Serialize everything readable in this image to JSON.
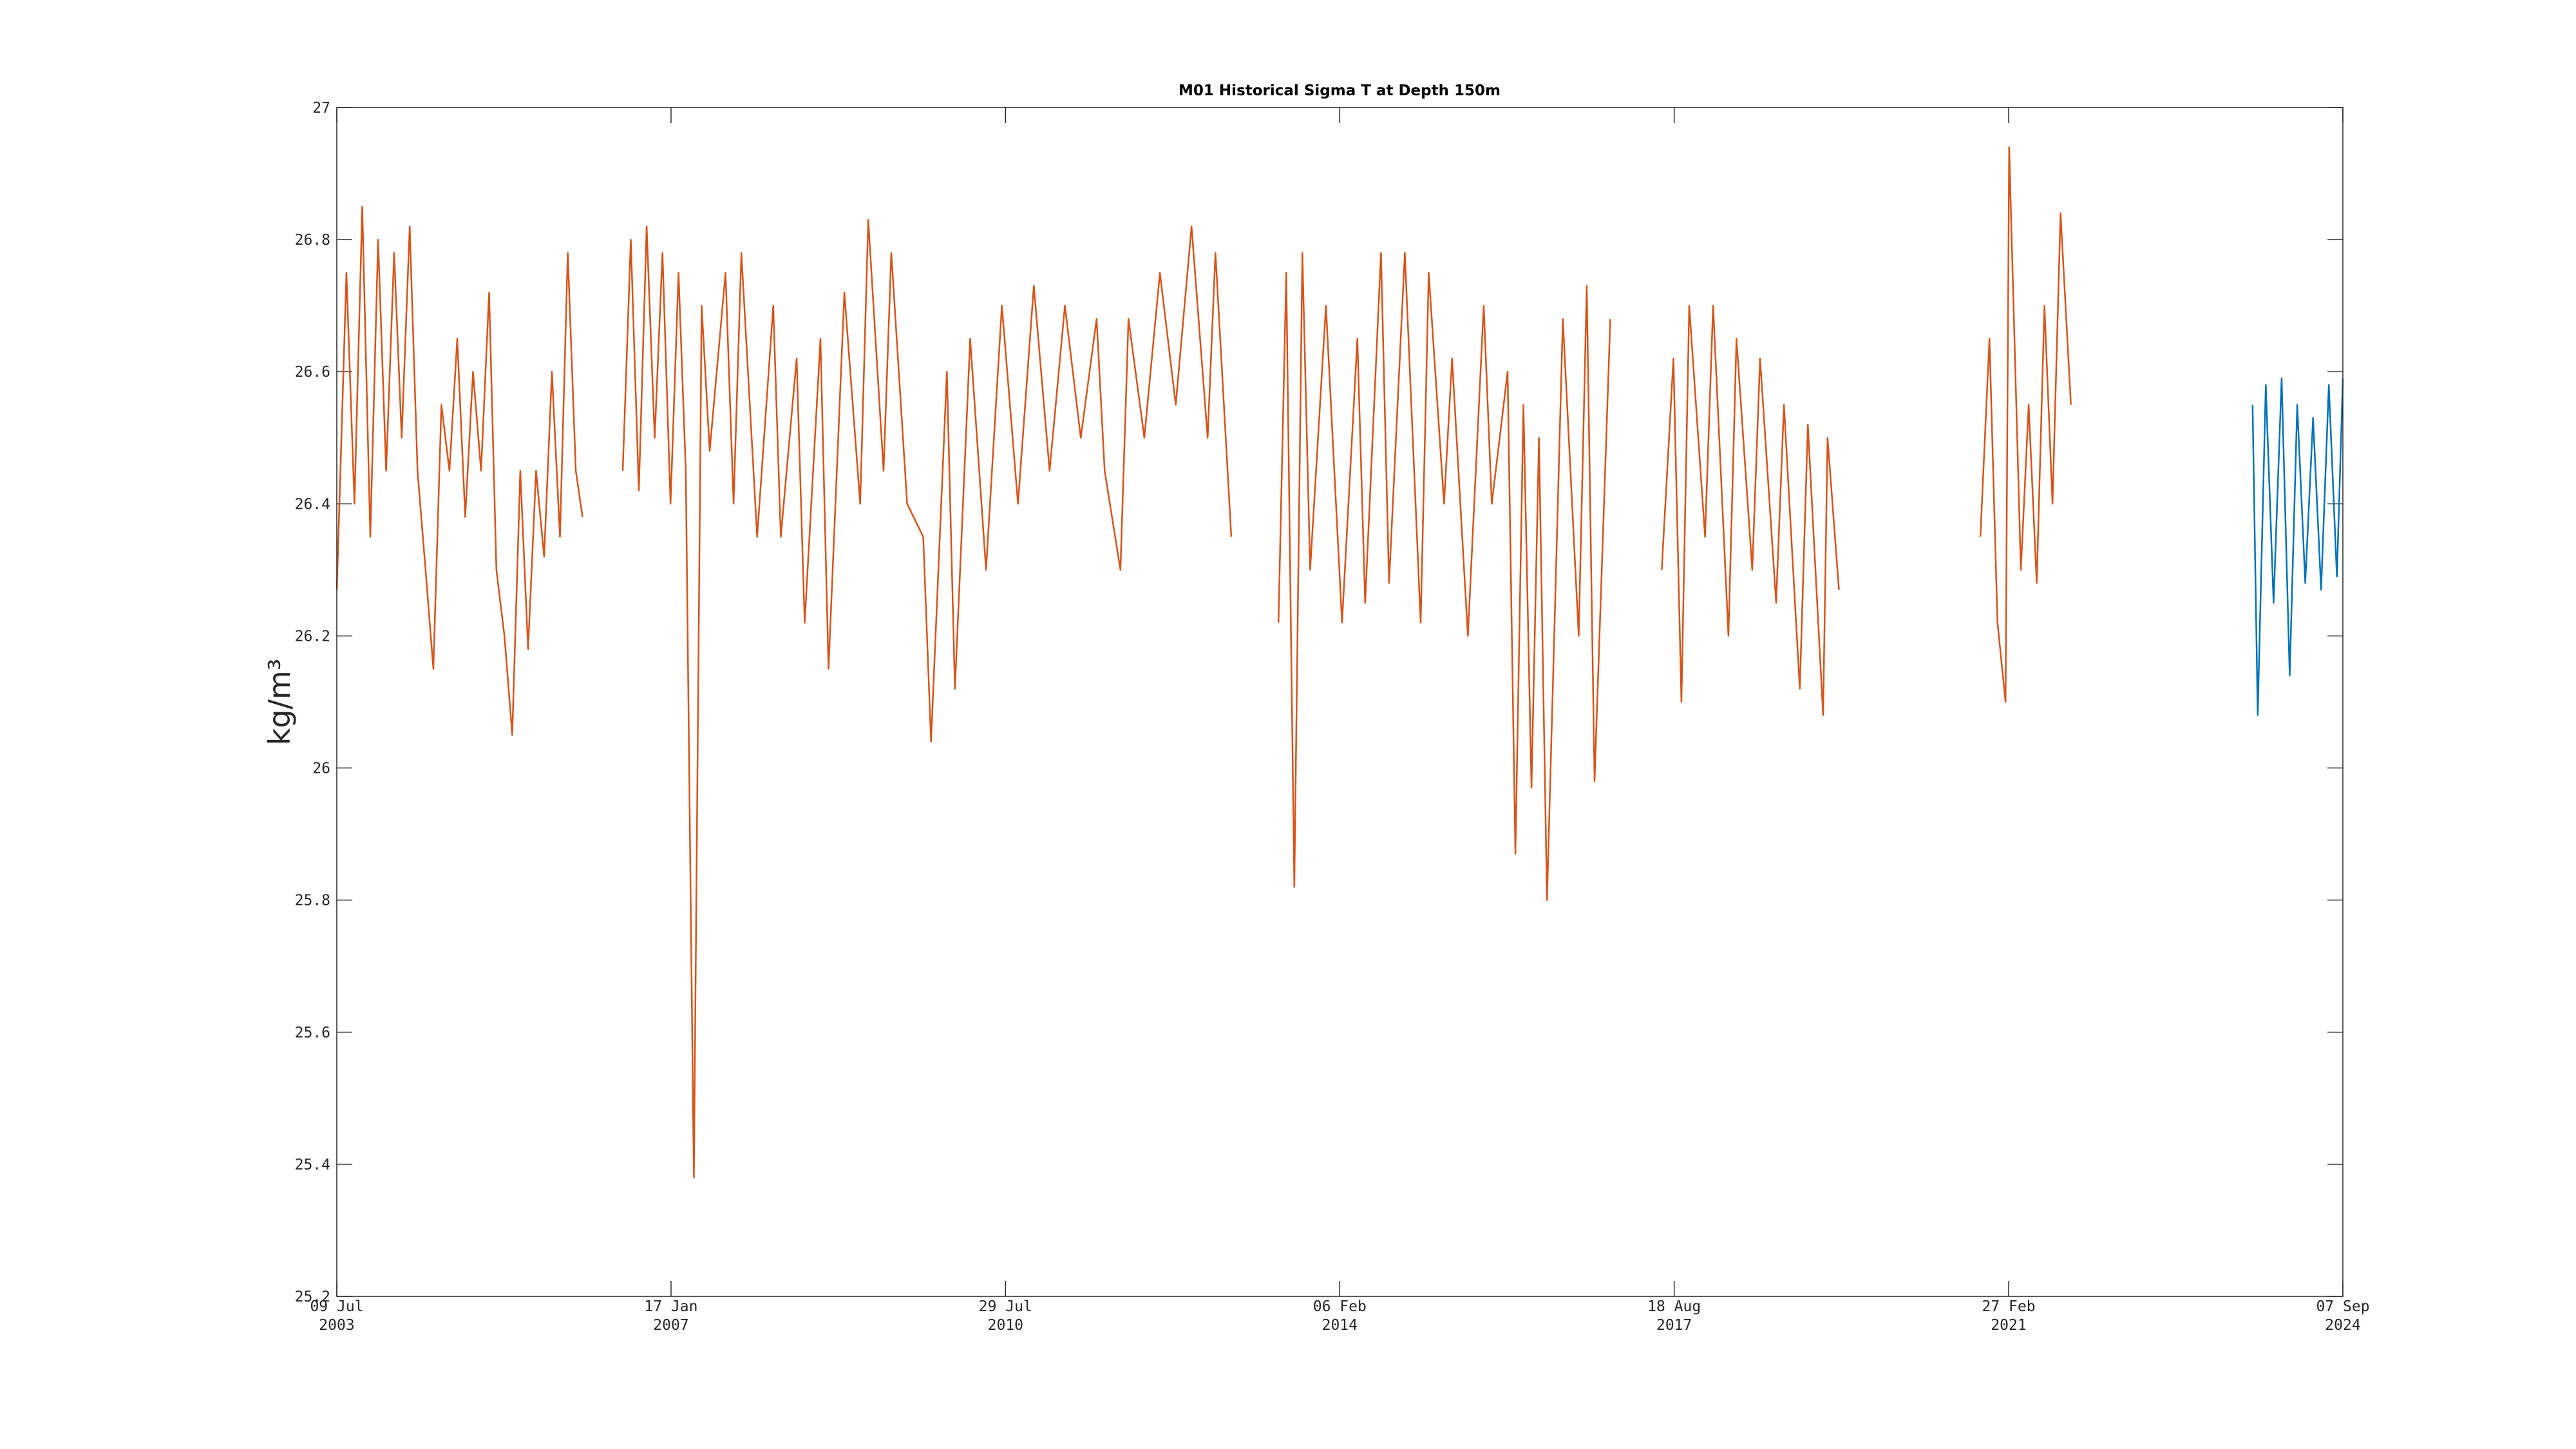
{
  "chart_data": {
    "type": "line",
    "title": "M01 Historical Sigma T at Depth 150m",
    "y_label": "kg/m³",
    "xlim": [
      "2003-07-09",
      "2024-09-07"
    ],
    "xticks": [
      {
        "value": "2003-07-09",
        "label": [
          "09 Jul",
          "2003"
        ]
      },
      {
        "value": "2007-01-17",
        "label": [
          "17 Jan",
          "2007"
        ]
      },
      {
        "value": "2010-07-29",
        "label": [
          "29 Jul",
          "2010"
        ]
      },
      {
        "value": "2014-02-06",
        "label": [
          "06 Feb",
          "2014"
        ]
      },
      {
        "value": "2017-08-18",
        "label": [
          "18 Aug",
          "2017"
        ]
      },
      {
        "value": "2021-02-27",
        "label": [
          "27 Feb",
          "2021"
        ]
      },
      {
        "value": "2024-09-07",
        "label": [
          "07 Sep",
          "2024"
        ]
      }
    ],
    "ylim": [
      25.2,
      27
    ],
    "yticks": [
      25.2,
      25.4,
      25.6,
      25.8,
      26,
      26.2,
      26.4,
      26.6,
      26.8,
      27
    ],
    "grid": false,
    "series": [
      {
        "color": "#D95319",
        "x": [
          "2003-07-09",
          "2003-08-15",
          "2003-09-15",
          "2003-10-15",
          "2003-11-15",
          "2003-12-15",
          "2004-01-15",
          "2004-02-15",
          "2004-03-15",
          "2004-04-15",
          "2004-05-15",
          "2004-06-15",
          "2004-07-15",
          "2004-08-15",
          "2004-09-15",
          "2004-10-15",
          "2004-11-15",
          "2004-12-15",
          "2005-01-15",
          "2005-02-15",
          "2005-03-15",
          "2005-04-15",
          "2005-05-15",
          "2005-06-15",
          "2005-07-15",
          "2005-08-15",
          "2005-09-15",
          "2005-10-15",
          "2005-11-15",
          "2005-12-15",
          "2006-01-15",
          "2006-02-10",
          "2006-05-01",
          "2006-07-15",
          "2006-08-15",
          "2006-09-15",
          "2006-10-15",
          "2006-11-15",
          "2006-12-15",
          "2007-01-15",
          "2007-02-15",
          "2007-03-15",
          "2007-04-15",
          "2007-05-15",
          "2007-06-15",
          "2007-08-15",
          "2007-09-15",
          "2007-10-15",
          "2007-12-15",
          "2008-02-15",
          "2008-03-15",
          "2008-05-15",
          "2008-06-15",
          "2008-08-15",
          "2008-09-15",
          "2008-11-15",
          "2009-01-15",
          "2009-02-15",
          "2009-04-15",
          "2009-05-15",
          "2009-07-15",
          "2009-09-15",
          "2009-10-15",
          "2009-12-15",
          "2010-01-15",
          "2010-03-15",
          "2010-05-15",
          "2010-07-15",
          "2010-09-15",
          "2010-11-15",
          "2011-01-15",
          "2011-03-15",
          "2011-05-15",
          "2011-07-15",
          "2011-08-15",
          "2011-10-15",
          "2011-11-15",
          "2012-01-15",
          "2012-03-15",
          "2012-05-15",
          "2012-07-15",
          "2012-09-15",
          "2012-10-15",
          "2012-12-15",
          "2013-03-15",
          "2013-06-15",
          "2013-07-15",
          "2013-08-15",
          "2013-09-15",
          "2013-10-15",
          "2013-12-15",
          "2014-02-15",
          "2014-04-15",
          "2014-05-15",
          "2014-07-15",
          "2014-08-15",
          "2014-10-15",
          "2014-12-15",
          "2015-01-15",
          "2015-03-15",
          "2015-04-15",
          "2015-06-15",
          "2015-08-15",
          "2015-09-15",
          "2015-11-15",
          "2015-12-15",
          "2016-01-15",
          "2016-02-15",
          "2016-03-15",
          "2016-04-15",
          "2016-06-15",
          "2016-08-15",
          "2016-09-15",
          "2016-10-15",
          "2016-12-15",
          "2017-03-15",
          "2017-07-01",
          "2017-08-15",
          "2017-09-15",
          "2017-10-15",
          "2017-12-15",
          "2018-01-15",
          "2018-03-15",
          "2018-04-15",
          "2018-06-15",
          "2018-07-15",
          "2018-09-15",
          "2018-10-15",
          "2018-12-15",
          "2019-01-15",
          "2019-03-15",
          "2019-04-01",
          "2019-05-15",
          "2020-06-15",
          "2020-11-10",
          "2020-12-15",
          "2021-01-15",
          "2021-02-15",
          "2021-03-01",
          "2021-04-15",
          "2021-05-15",
          "2021-06-15",
          "2021-07-15",
          "2021-08-15",
          "2021-09-15",
          "2021-10-25"
        ],
        "values": [
          26.27,
          26.75,
          26.4,
          26.85,
          26.35,
          26.8,
          26.45,
          26.78,
          26.5,
          26.82,
          26.45,
          26.3,
          26.15,
          26.55,
          26.45,
          26.65,
          26.38,
          26.6,
          26.45,
          26.72,
          26.3,
          26.2,
          26.05,
          26.45,
          26.18,
          26.45,
          26.32,
          26.6,
          26.35,
          26.78,
          26.45,
          26.38,
          null,
          26.45,
          26.8,
          26.42,
          26.82,
          26.5,
          26.78,
          26.4,
          26.75,
          26.45,
          25.38,
          26.7,
          26.48,
          26.75,
          26.4,
          26.78,
          26.35,
          26.7,
          26.35,
          26.62,
          26.22,
          26.65,
          26.15,
          26.72,
          26.4,
          26.83,
          26.45,
          26.78,
          26.4,
          26.35,
          26.04,
          26.6,
          26.12,
          26.65,
          26.3,
          26.7,
          26.4,
          26.73,
          26.45,
          26.7,
          26.5,
          26.68,
          26.45,
          26.3,
          26.68,
          26.5,
          26.75,
          26.55,
          26.82,
          26.5,
          26.78,
          26.35,
          null,
          26.22,
          26.75,
          25.82,
          26.78,
          26.3,
          26.7,
          26.22,
          26.65,
          26.25,
          26.78,
          26.28,
          26.78,
          26.22,
          26.75,
          26.4,
          26.62,
          26.2,
          26.7,
          26.4,
          26.6,
          25.87,
          26.55,
          25.97,
          26.5,
          25.8,
          26.68,
          26.2,
          26.73,
          25.98,
          26.68,
          null,
          26.3,
          26.62,
          26.1,
          26.7,
          26.35,
          26.7,
          26.2,
          26.65,
          26.3,
          26.62,
          26.25,
          26.55,
          26.12,
          26.52,
          26.08,
          26.5,
          26.27,
          null,
          26.35,
          26.65,
          26.22,
          26.1,
          26.94,
          26.3,
          26.55,
          26.28,
          26.7,
          26.4,
          26.84,
          26.55
        ]
      },
      {
        "color": "#0072BD",
        "x": [
          "2023-09-25",
          "2023-10-15",
          "2023-11-15",
          "2023-12-15",
          "2024-01-15",
          "2024-02-15",
          "2024-03-15",
          "2024-04-15",
          "2024-05-15",
          "2024-06-15",
          "2024-07-15",
          "2024-08-15",
          "2024-09-07"
        ],
        "values": [
          26.55,
          26.08,
          26.58,
          26.25,
          26.59,
          26.14,
          26.55,
          26.28,
          26.53,
          26.27,
          26.58,
          26.29,
          26.59
        ]
      }
    ]
  }
}
